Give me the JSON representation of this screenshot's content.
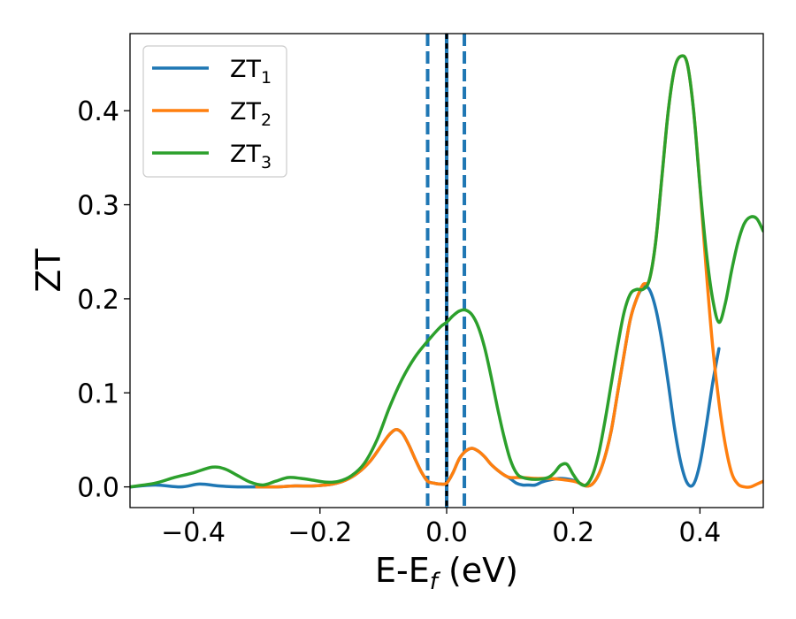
{
  "chart_data": {
    "type": "line",
    "xlabel": "E-E",
    "xlabel_sub": "f",
    "xlabel_unit": " (eV)",
    "ylabel": "ZT",
    "xlim": [
      -0.5,
      0.5
    ],
    "ylim": [
      -0.022,
      0.482
    ],
    "xticks": [
      -0.4,
      -0.2,
      0.0,
      0.2,
      0.4
    ],
    "xtick_labels": [
      "−0.4",
      "−0.2",
      "0.0",
      "0.2",
      "0.4"
    ],
    "yticks": [
      0.0,
      0.1,
      0.2,
      0.3,
      0.4
    ],
    "ytick_labels": [
      "0.0",
      "0.1",
      "0.2",
      "0.3",
      "0.4"
    ],
    "grid": false,
    "legend_position": "top-left",
    "vlines": [
      {
        "x": -0.03,
        "color": "#1f77b4",
        "style": "dashed"
      },
      {
        "x": 0.0,
        "color": "#1f77b4",
        "style": "solid"
      },
      {
        "x": 0.0,
        "color": "#000000",
        "style": "dotted"
      },
      {
        "x": 0.028,
        "color": "#1f77b4",
        "style": "dashed"
      }
    ],
    "series": [
      {
        "name": "ZT",
        "sub": "1",
        "color": "#1f77b4",
        "x": [
          -0.5,
          -0.46,
          -0.42,
          -0.39,
          -0.36,
          -0.33,
          -0.3,
          -0.27,
          -0.24,
          -0.21,
          -0.18,
          -0.16,
          -0.14,
          -0.12,
          -0.1,
          -0.09,
          -0.08,
          -0.07,
          -0.06,
          -0.05,
          -0.04,
          -0.03,
          -0.02,
          -0.01,
          0.0,
          0.01,
          0.02,
          0.03,
          0.04,
          0.05,
          0.06,
          0.07,
          0.08,
          0.09,
          0.1,
          0.11,
          0.12,
          0.13,
          0.14,
          0.15,
          0.16,
          0.18,
          0.2,
          0.21,
          0.22,
          0.23,
          0.24,
          0.25,
          0.26,
          0.27,
          0.28,
          0.29,
          0.3,
          0.31,
          0.32,
          0.33,
          0.34,
          0.35,
          0.36,
          0.37,
          0.38,
          0.39,
          0.4,
          0.41,
          0.42,
          0.43
        ],
        "y": [
          0.0,
          0.002,
          0.0,
          0.003,
          0.001,
          0.0,
          0.0,
          0.0,
          0.001,
          0.001,
          0.003,
          0.007,
          0.015,
          0.028,
          0.047,
          0.056,
          0.061,
          0.057,
          0.045,
          0.03,
          0.016,
          0.006,
          0.004,
          0.003,
          0.004,
          0.015,
          0.03,
          0.038,
          0.041,
          0.038,
          0.032,
          0.024,
          0.018,
          0.013,
          0.009,
          0.004,
          0.002,
          0.002,
          0.002,
          0.005,
          0.007,
          0.009,
          0.007,
          0.004,
          0.001,
          0.003,
          0.013,
          0.032,
          0.06,
          0.1,
          0.14,
          0.178,
          0.2,
          0.212,
          0.21,
          0.19,
          0.155,
          0.11,
          0.062,
          0.025,
          0.004,
          0.003,
          0.025,
          0.065,
          0.11,
          0.147
        ]
      },
      {
        "name": "ZT",
        "sub": "2",
        "color": "#ff7f0e",
        "x": [
          -0.3,
          -0.27,
          -0.24,
          -0.21,
          -0.18,
          -0.16,
          -0.14,
          -0.12,
          -0.1,
          -0.09,
          -0.08,
          -0.07,
          -0.06,
          -0.05,
          -0.04,
          -0.03,
          -0.02,
          -0.01,
          0.0,
          0.01,
          0.02,
          0.03,
          0.04,
          0.05,
          0.06,
          0.07,
          0.08,
          0.09,
          0.1,
          0.12,
          0.14,
          0.16,
          0.18,
          0.2,
          0.21,
          0.22,
          0.23,
          0.24,
          0.25,
          0.26,
          0.27,
          0.28,
          0.29,
          0.3,
          0.31,
          0.32,
          0.33,
          0.34,
          0.35,
          0.36,
          0.37,
          0.38,
          0.39,
          0.4,
          0.41,
          0.42,
          0.43,
          0.44,
          0.45,
          0.46,
          0.47,
          0.48,
          0.49,
          0.5
        ],
        "y": [
          0.0,
          0.0,
          0.001,
          0.001,
          0.003,
          0.007,
          0.015,
          0.028,
          0.047,
          0.056,
          0.061,
          0.057,
          0.045,
          0.03,
          0.016,
          0.006,
          0.004,
          0.003,
          0.004,
          0.015,
          0.03,
          0.038,
          0.041,
          0.038,
          0.032,
          0.024,
          0.018,
          0.013,
          0.01,
          0.01,
          0.009,
          0.009,
          0.008,
          0.006,
          0.004,
          0.001,
          0.003,
          0.013,
          0.032,
          0.06,
          0.1,
          0.14,
          0.178,
          0.2,
          0.215,
          0.22,
          0.26,
          0.33,
          0.4,
          0.445,
          0.458,
          0.45,
          0.4,
          0.32,
          0.23,
          0.15,
          0.09,
          0.045,
          0.015,
          0.003,
          0.0,
          0.0,
          0.003,
          0.006
        ]
      },
      {
        "name": "ZT",
        "sub": "3",
        "color": "#2ca02c",
        "x": [
          -0.5,
          -0.46,
          -0.43,
          -0.4,
          -0.37,
          -0.35,
          -0.33,
          -0.31,
          -0.29,
          -0.27,
          -0.25,
          -0.23,
          -0.21,
          -0.19,
          -0.17,
          -0.15,
          -0.13,
          -0.11,
          -0.09,
          -0.07,
          -0.05,
          -0.03,
          -0.01,
          0.0,
          0.01,
          0.02,
          0.03,
          0.04,
          0.05,
          0.06,
          0.07,
          0.08,
          0.09,
          0.1,
          0.11,
          0.12,
          0.14,
          0.16,
          0.17,
          0.18,
          0.19,
          0.2,
          0.21,
          0.22,
          0.23,
          0.24,
          0.25,
          0.26,
          0.27,
          0.28,
          0.29,
          0.3,
          0.31,
          0.32,
          0.33,
          0.34,
          0.35,
          0.36,
          0.37,
          0.38,
          0.39,
          0.4,
          0.41,
          0.42,
          0.43,
          0.44,
          0.45,
          0.46,
          0.47,
          0.48,
          0.49,
          0.5
        ],
        "y": [
          0.0,
          0.004,
          0.01,
          0.015,
          0.021,
          0.019,
          0.012,
          0.005,
          0.002,
          0.006,
          0.01,
          0.009,
          0.007,
          0.005,
          0.006,
          0.012,
          0.025,
          0.05,
          0.085,
          0.115,
          0.138,
          0.155,
          0.17,
          0.175,
          0.182,
          0.187,
          0.188,
          0.183,
          0.17,
          0.148,
          0.118,
          0.085,
          0.055,
          0.03,
          0.015,
          0.01,
          0.008,
          0.01,
          0.015,
          0.023,
          0.024,
          0.013,
          0.004,
          0.002,
          0.012,
          0.035,
          0.07,
          0.11,
          0.15,
          0.185,
          0.205,
          0.21,
          0.21,
          0.22,
          0.26,
          0.33,
          0.4,
          0.445,
          0.458,
          0.45,
          0.4,
          0.32,
          0.25,
          0.2,
          0.175,
          0.195,
          0.23,
          0.26,
          0.28,
          0.287,
          0.285,
          0.272
        ]
      }
    ]
  }
}
